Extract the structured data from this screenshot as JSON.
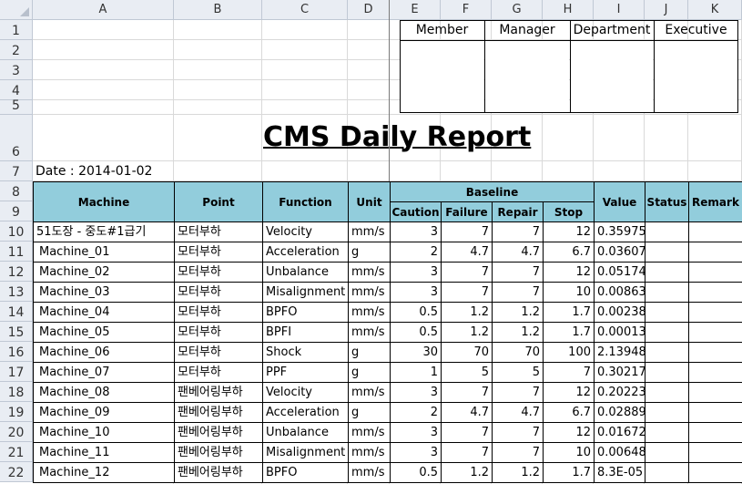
{
  "columns": [
    "A",
    "B",
    "C",
    "D",
    "E",
    "F",
    "G",
    "H",
    "I",
    "J",
    "K"
  ],
  "rows": [
    "1",
    "2",
    "3",
    "4",
    "5",
    "6",
    "7",
    "8",
    "9",
    "10",
    "11",
    "12",
    "13",
    "14",
    "15",
    "16",
    "17",
    "18",
    "19",
    "20",
    "21",
    "22"
  ],
  "approval": {
    "headers": [
      "Member",
      "Manager",
      "Department",
      "Executive"
    ]
  },
  "title": "CMS Daily Report",
  "date_text": "Date : 2014-01-02",
  "table": {
    "headers": {
      "machine": "Machine",
      "point": "Point",
      "function": "Function",
      "unit": "Unit",
      "baseline": "Baseline",
      "caution": "Caution",
      "failure": "Failure",
      "repair": "Repair",
      "stop": "Stop",
      "value": "Value",
      "status": "Status",
      "remark": "Remark"
    },
    "rows": [
      {
        "machine": "51도장 - 중도#1급기",
        "point": "모터부하",
        "function": "Velocity",
        "unit": "mm/s",
        "caution": "3",
        "failure": "7",
        "repair": "7",
        "stop": "12",
        "value": "0.35975",
        "status": "",
        "remark": ""
      },
      {
        "machine": "Machine_01",
        "point": "모터부하",
        "function": "Acceleration",
        "unit": "g",
        "caution": "2",
        "failure": "4.7",
        "repair": "4.7",
        "stop": "6.7",
        "value": "0.03607",
        "status": "",
        "remark": ""
      },
      {
        "machine": "Machine_02",
        "point": "모터부하",
        "function": "Unbalance",
        "unit": "mm/s",
        "caution": "3",
        "failure": "7",
        "repair": "7",
        "stop": "12",
        "value": "0.05174",
        "status": "",
        "remark": ""
      },
      {
        "machine": "Machine_03",
        "point": "모터부하",
        "function": "Misalignment",
        "unit": "mm/s",
        "caution": "3",
        "failure": "7",
        "repair": "7",
        "stop": "10",
        "value": "0.00863",
        "status": "",
        "remark": ""
      },
      {
        "machine": "Machine_04",
        "point": "모터부하",
        "function": "BPFO",
        "unit": "mm/s",
        "caution": "0.5",
        "failure": "1.2",
        "repair": "1.2",
        "stop": "1.7",
        "value": "0.00238",
        "status": "",
        "remark": ""
      },
      {
        "machine": "Machine_05",
        "point": "모터부하",
        "function": "BPFI",
        "unit": "mm/s",
        "caution": "0.5",
        "failure": "1.2",
        "repair": "1.2",
        "stop": "1.7",
        "value": "0.00013",
        "status": "",
        "remark": ""
      },
      {
        "machine": "Machine_06",
        "point": "모터부하",
        "function": "Shock",
        "unit": "g",
        "caution": "30",
        "failure": "70",
        "repair": "70",
        "stop": "100",
        "value": "2.13948",
        "status": "",
        "remark": ""
      },
      {
        "machine": "Machine_07",
        "point": "모터부하",
        "function": "PPF",
        "unit": "g",
        "caution": "1",
        "failure": "5",
        "repair": "5",
        "stop": "7",
        "value": "0.30217",
        "status": "",
        "remark": ""
      },
      {
        "machine": "Machine_08",
        "point": "팬베어링부하",
        "function": "Velocity",
        "unit": "mm/s",
        "caution": "3",
        "failure": "7",
        "repair": "7",
        "stop": "12",
        "value": "0.20223",
        "status": "",
        "remark": ""
      },
      {
        "machine": "Machine_09",
        "point": "팬베어링부하",
        "function": "Acceleration",
        "unit": "g",
        "caution": "2",
        "failure": "4.7",
        "repair": "4.7",
        "stop": "6.7",
        "value": "0.02889",
        "status": "",
        "remark": ""
      },
      {
        "machine": "Machine_10",
        "point": "팬베어링부하",
        "function": "Unbalance",
        "unit": "mm/s",
        "caution": "3",
        "failure": "7",
        "repair": "7",
        "stop": "12",
        "value": "0.01672",
        "status": "",
        "remark": ""
      },
      {
        "machine": "Machine_11",
        "point": "팬베어링부하",
        "function": "Misalignment",
        "unit": "mm/s",
        "caution": "3",
        "failure": "7",
        "repair": "7",
        "stop": "10",
        "value": "0.00648",
        "status": "",
        "remark": ""
      },
      {
        "machine": "Machine_12",
        "point": "팬베어링부하",
        "function": "BPFO",
        "unit": "mm/s",
        "caution": "0.5",
        "failure": "1.2",
        "repair": "1.2",
        "stop": "1.7",
        "value": "8.3E-05",
        "status": "",
        "remark": ""
      }
    ]
  },
  "colors": {
    "header_fill": "#92cddc",
    "sheet_header_bg": "#e9edf3",
    "gridline": "#d9d9d9"
  }
}
